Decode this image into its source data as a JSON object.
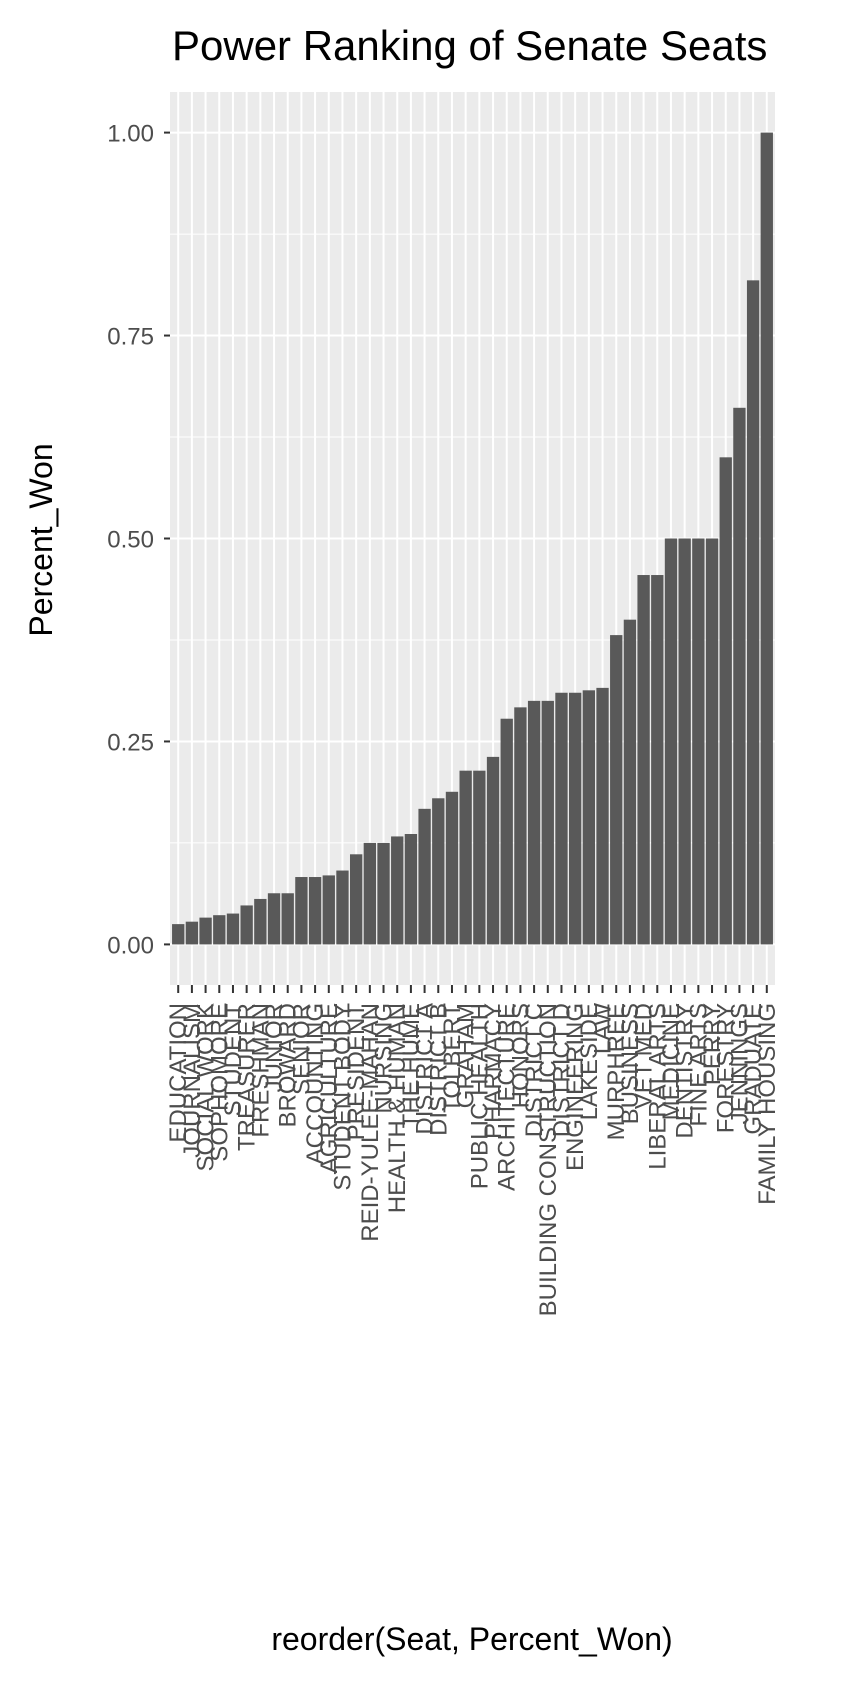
{
  "chart_data": {
    "type": "bar",
    "title": "Power Ranking of Senate Seats",
    "x_label": "reorder(Seat, Percent_Won)",
    "y_label": "Percent_Won",
    "categories": [
      "EDUCATION",
      "JOURNALISM",
      "SOCIAL WORK",
      "SOPHOMORE",
      "STUDENT",
      "TREASURER",
      "FRESHMAN",
      "JUNIOR",
      "BROWARD",
      "SENIOR",
      "ACCOUNTING",
      "AGRICULTURE",
      "STUDENT BODY",
      "PRESIDENT",
      "REID-YULEE-MAHAN",
      "NURSING",
      "HEALTH & HUMAN",
      "THE HUME",
      "DISTRICT A",
      "DISTRICT B",
      "TOLBERT",
      "GRAHAM",
      "PUBLIC HEALTH",
      "PHARMACY",
      "ARCHITECTURE",
      "HONORS",
      "DISTRICT C",
      "BUILDING CONSTRUCTION",
      "DISTRICT D",
      "ENGINEERING",
      "LAKESIDE",
      "LAW",
      "MURPHREE",
      "BUSINESS",
      "VET MED",
      "LIBERAL ARTS",
      "MEDICINE",
      "DENTISTRY",
      "FINE ARTS",
      "PERRY",
      "FORESTRY",
      "JENNINGS",
      "GRADUATE",
      "FAMILY HOUSING"
    ],
    "values": [
      0.025,
      0.028,
      0.033,
      0.036,
      0.038,
      0.048,
      0.056,
      0.063,
      0.063,
      0.083,
      0.083,
      0.085,
      0.091,
      0.111,
      0.125,
      0.125,
      0.133,
      0.136,
      0.167,
      0.18,
      0.188,
      0.214,
      0.214,
      0.231,
      0.278,
      0.292,
      0.3,
      0.3,
      0.31,
      0.31,
      0.313,
      0.316,
      0.381,
      0.4,
      0.455,
      0.455,
      0.5,
      0.5,
      0.5,
      0.5,
      0.6,
      0.661,
      0.818,
      1.0
    ],
    "color": "#595959",
    "ylim": [
      -0.05,
      1.05
    ],
    "yticks": [
      {
        "value": 0,
        "label": "0.00"
      },
      {
        "value": 0.25,
        "label": "0.25"
      },
      {
        "value": 0.5,
        "label": "0.50"
      },
      {
        "value": 0.75,
        "label": "0.75"
      },
      {
        "value": 1,
        "label": "1.00"
      }
    ],
    "grid": true
  }
}
